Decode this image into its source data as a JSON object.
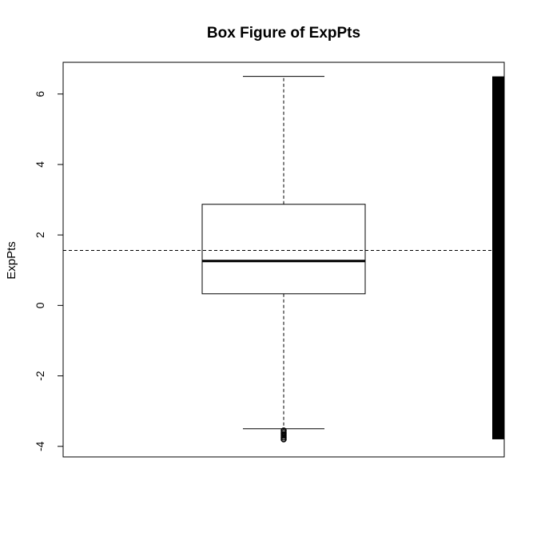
{
  "chart_data": {
    "type": "boxplot",
    "title": "Box Figure of ExpPts",
    "xlabel": "",
    "ylabel": "ExpPts",
    "ylim": [
      -4.3,
      6.9
    ],
    "yticks": [
      -4,
      -2,
      0,
      2,
      4,
      6
    ],
    "grid": false,
    "box": {
      "whisker_low": -3.5,
      "q1": 0.33,
      "median": 1.26,
      "q3": 2.87,
      "whisker_high": 6.5,
      "outliers_low": [
        -3.55,
        -3.6,
        -3.65,
        -3.7,
        -3.75,
        -3.8
      ]
    },
    "mean_line": 1.56,
    "rug": {
      "min": -3.8,
      "max": 6.5,
      "color": "#000000"
    }
  }
}
